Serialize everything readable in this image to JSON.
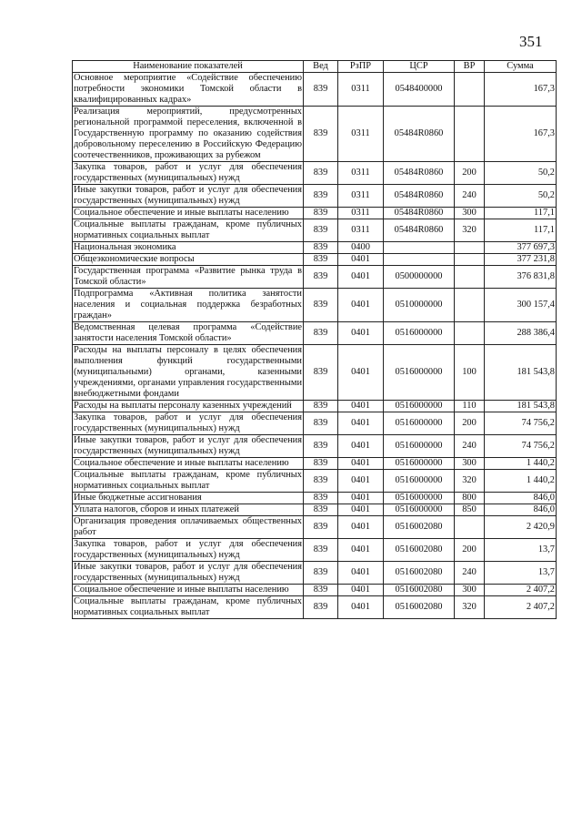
{
  "page_number": "351",
  "headers": [
    "Наименование показателей",
    "Вед",
    "РзПР",
    "ЦСР",
    "ВР",
    "Сумма"
  ],
  "rows": [
    {
      "name": "Основное мероприятие «Содействие обеспечению потребности экономики Томской области в квалифицированных кадрах»",
      "ved": "839",
      "rzpr": "0311",
      "csr": "0548400000",
      "vr": "",
      "sum": "167,3"
    },
    {
      "name": "Реализация мероприятий, предусмотренных региональной программой переселения, включенной в Государственную программу по оказанию содействия добровольному переселению в Российскую Федерацию соотечественников, проживающих за рубежом",
      "ved": "839",
      "rzpr": "0311",
      "csr": "05484R0860",
      "vr": "",
      "sum": "167,3"
    },
    {
      "name": "Закупка товаров, работ и услуг для обеспечения государственных (муниципальных) нужд",
      "ved": "839",
      "rzpr": "0311",
      "csr": "05484R0860",
      "vr": "200",
      "sum": "50,2"
    },
    {
      "name": "Иные закупки товаров, работ и услуг для обеспечения государственных (муниципальных) нужд",
      "ved": "839",
      "rzpr": "0311",
      "csr": "05484R0860",
      "vr": "240",
      "sum": "50,2"
    },
    {
      "name": "Социальное обеспечение и иные выплаты населению",
      "ved": "839",
      "rzpr": "0311",
      "csr": "05484R0860",
      "vr": "300",
      "sum": "117,1"
    },
    {
      "name": "Социальные выплаты гражданам, кроме публичных нормативных социальных выплат",
      "ved": "839",
      "rzpr": "0311",
      "csr": "05484R0860",
      "vr": "320",
      "sum": "117,1"
    },
    {
      "name": "Национальная экономика",
      "ved": "839",
      "rzpr": "0400",
      "csr": "",
      "vr": "",
      "sum": "377 697,3"
    },
    {
      "name": "Общеэкономические вопросы",
      "ved": "839",
      "rzpr": "0401",
      "csr": "",
      "vr": "",
      "sum": "377 231,8"
    },
    {
      "name": "Государственная программа «Развитие рынка труда в Томской области»",
      "ved": "839",
      "rzpr": "0401",
      "csr": "0500000000",
      "vr": "",
      "sum": "376 831,8"
    },
    {
      "name": "Подпрограмма «Активная политика занятости населения и социальная поддержка безработных граждан»",
      "ved": "839",
      "rzpr": "0401",
      "csr": "0510000000",
      "vr": "",
      "sum": "300 157,4"
    },
    {
      "name": "Ведомственная целевая программа «Содействие занятости населения Томской области»",
      "ved": "839",
      "rzpr": "0401",
      "csr": "0516000000",
      "vr": "",
      "sum": "288 386,4"
    },
    {
      "name": "Расходы на выплаты персоналу в целях обеспечения выполнения функций государственными (муниципальными) органами, казенными учреждениями, органами управления государственными внебюджетными фондами",
      "ved": "839",
      "rzpr": "0401",
      "csr": "0516000000",
      "vr": "100",
      "sum": "181 543,8"
    },
    {
      "name": "Расходы на выплаты персоналу казенных учреждений",
      "ved": "839",
      "rzpr": "0401",
      "csr": "0516000000",
      "vr": "110",
      "sum": "181 543,8"
    },
    {
      "name": "Закупка товаров, работ и услуг для обеспечения государственных (муниципальных) нужд",
      "ved": "839",
      "rzpr": "0401",
      "csr": "0516000000",
      "vr": "200",
      "sum": "74 756,2"
    },
    {
      "name": "Иные закупки товаров, работ и услуг для обеспечения государственных (муниципальных) нужд",
      "ved": "839",
      "rzpr": "0401",
      "csr": "0516000000",
      "vr": "240",
      "sum": "74 756,2"
    },
    {
      "name": "Социальное обеспечение и иные выплаты населению",
      "ved": "839",
      "rzpr": "0401",
      "csr": "0516000000",
      "vr": "300",
      "sum": "1 440,2"
    },
    {
      "name": "Социальные выплаты гражданам, кроме публичных нормативных социальных выплат",
      "ved": "839",
      "rzpr": "0401",
      "csr": "0516000000",
      "vr": "320",
      "sum": "1 440,2"
    },
    {
      "name": "Иные бюджетные ассигнования",
      "ved": "839",
      "rzpr": "0401",
      "csr": "0516000000",
      "vr": "800",
      "sum": "846,0"
    },
    {
      "name": "Уплата налогов, сборов и иных платежей",
      "ved": "839",
      "rzpr": "0401",
      "csr": "0516000000",
      "vr": "850",
      "sum": "846,0"
    },
    {
      "name": "Организация проведения оплачиваемых общественных работ",
      "ved": "839",
      "rzpr": "0401",
      "csr": "0516002080",
      "vr": "",
      "sum": "2 420,9"
    },
    {
      "name": "Закупка товаров, работ и услуг для обеспечения государственных (муниципальных) нужд",
      "ved": "839",
      "rzpr": "0401",
      "csr": "0516002080",
      "vr": "200",
      "sum": "13,7"
    },
    {
      "name": "Иные закупки товаров, работ и услуг для обеспечения государственных (муниципальных) нужд",
      "ved": "839",
      "rzpr": "0401",
      "csr": "0516002080",
      "vr": "240",
      "sum": "13,7"
    },
    {
      "name": "Социальное обеспечение и иные выплаты населению",
      "ved": "839",
      "rzpr": "0401",
      "csr": "0516002080",
      "vr": "300",
      "sum": "2 407,2"
    },
    {
      "name": "Социальные выплаты гражданам, кроме публичных нормативных социальных выплат",
      "ved": "839",
      "rzpr": "0401",
      "csr": "0516002080",
      "vr": "320",
      "sum": "2 407,2"
    }
  ]
}
